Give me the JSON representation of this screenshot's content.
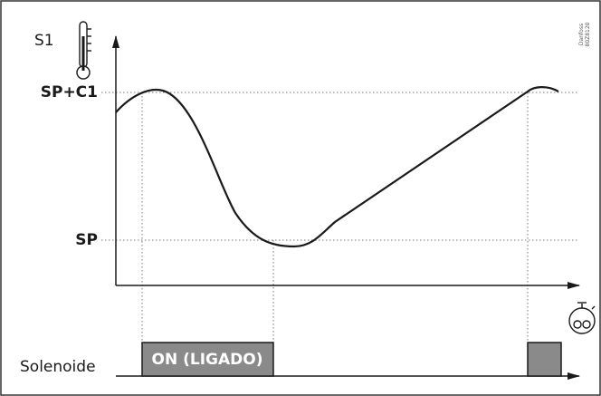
{
  "axis": {
    "y_label": "S1",
    "upper_level": "SP+C1",
    "lower_level": "SP"
  },
  "output": {
    "label": "Solenoide",
    "state": "ON (LIGADO)"
  },
  "watermark": {
    "brand": "Danfoss",
    "code": "80Z8120"
  }
}
